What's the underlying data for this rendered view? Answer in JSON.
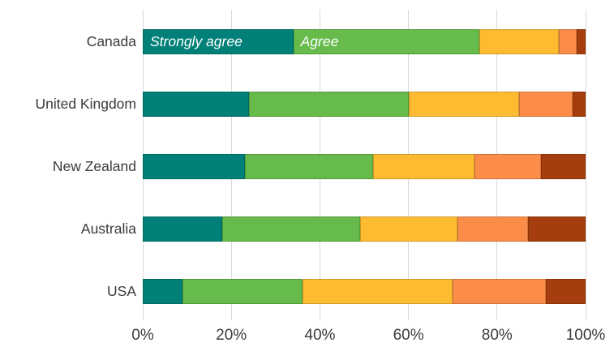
{
  "chart_data": {
    "type": "bar",
    "orientation": "horizontal_stacked",
    "title": "",
    "xlabel": "",
    "ylabel": "",
    "xlim": [
      0,
      100
    ],
    "grid": "vertical",
    "grid_color": "#d9d9d9",
    "text_color": "#3a3a3a",
    "x_ticks": [
      {
        "label": "0%",
        "value": 0
      },
      {
        "label": "20%",
        "value": 20
      },
      {
        "label": "40%",
        "value": 40
      },
      {
        "label": "60%",
        "value": 60
      },
      {
        "label": "80%",
        "value": 80
      },
      {
        "label": "100%",
        "value": 100
      }
    ],
    "categories": [
      "Canada",
      "United Kingdom",
      "New Zealand",
      "Australia",
      "USA"
    ],
    "series": [
      {
        "name": "Strongly agree",
        "color": "#008079",
        "values": [
          34,
          24,
          23,
          18,
          9
        ]
      },
      {
        "name": "Agree",
        "color": "#66bb4a",
        "values": [
          42,
          36,
          29,
          31,
          27
        ]
      },
      {
        "name": "",
        "color": "#fdbb32",
        "values": [
          18,
          25,
          23,
          22,
          34
        ]
      },
      {
        "name": "",
        "color": "#fc8d49",
        "values": [
          4,
          12,
          15,
          16,
          21
        ]
      },
      {
        "name": "",
        "color": "#a63d0c",
        "values": [
          2,
          3,
          10,
          13,
          9
        ]
      }
    ],
    "inbar_labels": {
      "row": "Canada",
      "labels": [
        "Strongly agree",
        "Agree"
      ],
      "color": "#ffffff",
      "style": "italic"
    }
  }
}
